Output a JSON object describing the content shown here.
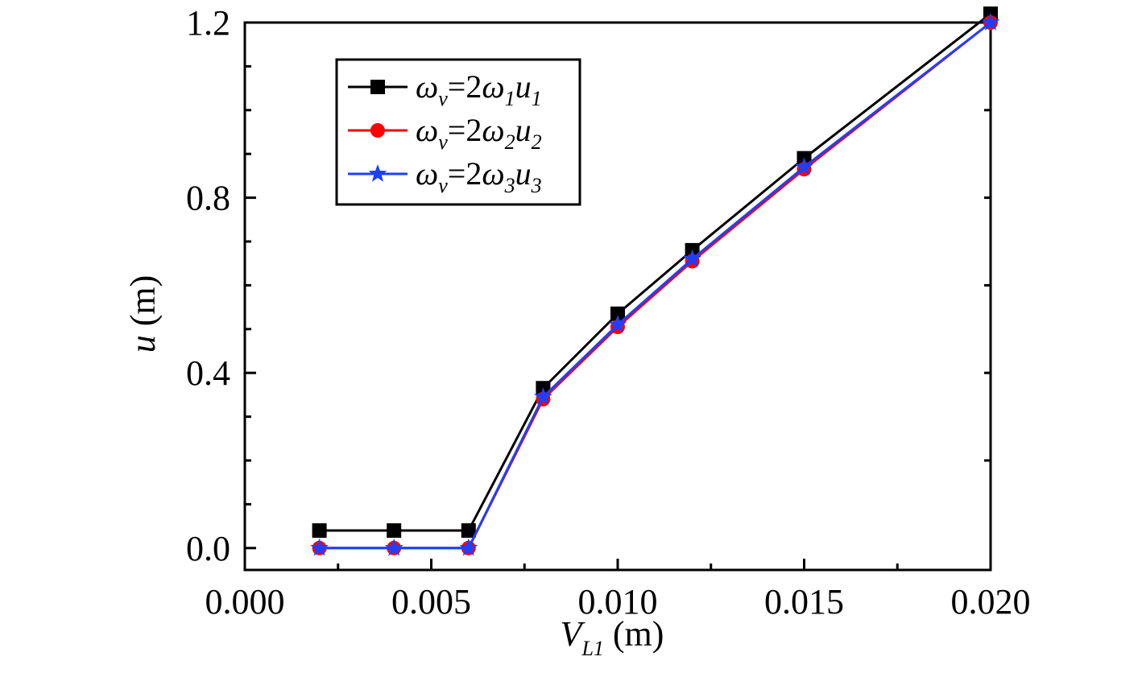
{
  "chart_data": {
    "type": "line",
    "title": "",
    "xlabel": {
      "main": "V",
      "sub": "L1",
      "unit": "(m)"
    },
    "ylabel": {
      "main": "u",
      "unit": "(m)"
    },
    "xlim": [
      0.0,
      0.02
    ],
    "ylim": [
      -0.05,
      1.2
    ],
    "x_ticks": [
      0.0,
      0.005,
      0.01,
      0.015,
      0.02
    ],
    "x_tick_labels": [
      "0.000",
      "0.005",
      "0.010",
      "0.015",
      "0.020"
    ],
    "y_ticks": [
      0.0,
      0.4,
      0.8,
      1.2
    ],
    "y_tick_labels": [
      "0.0",
      "0.4",
      "0.8",
      "1.2"
    ],
    "grid": false,
    "legend_position": "top-left",
    "x": [
      0.002,
      0.004,
      0.006,
      0.008,
      0.01,
      0.012,
      0.015,
      0.02
    ],
    "series": [
      {
        "legend": {
          "lhs": "ω",
          "lhs_sub": "v",
          "coef": "=2",
          "w": "ω",
          "w_sub": "1",
          "u": "u",
          "u_sub": "1"
        },
        "color": "#000000",
        "marker": "square",
        "values": [
          0.04,
          0.04,
          0.04,
          0.365,
          0.535,
          0.68,
          0.89,
          1.22
        ]
      },
      {
        "legend": {
          "lhs": "ω",
          "lhs_sub": "v",
          "coef": "=2",
          "w": "ω",
          "w_sub": "2",
          "u": "u",
          "u_sub": "2"
        },
        "color": "#ff0000",
        "marker": "circle",
        "values": [
          0.0,
          0.0,
          0.0,
          0.34,
          0.505,
          0.655,
          0.865,
          1.2
        ]
      },
      {
        "legend": {
          "lhs": "ω",
          "lhs_sub": "v",
          "coef": "=2",
          "w": "ω",
          "w_sub": "3",
          "u": "u",
          "u_sub": "3"
        },
        "color": "#1f3fff",
        "marker": "star",
        "values": [
          0.0,
          0.0,
          0.0,
          0.345,
          0.51,
          0.66,
          0.87,
          1.2
        ]
      }
    ]
  }
}
